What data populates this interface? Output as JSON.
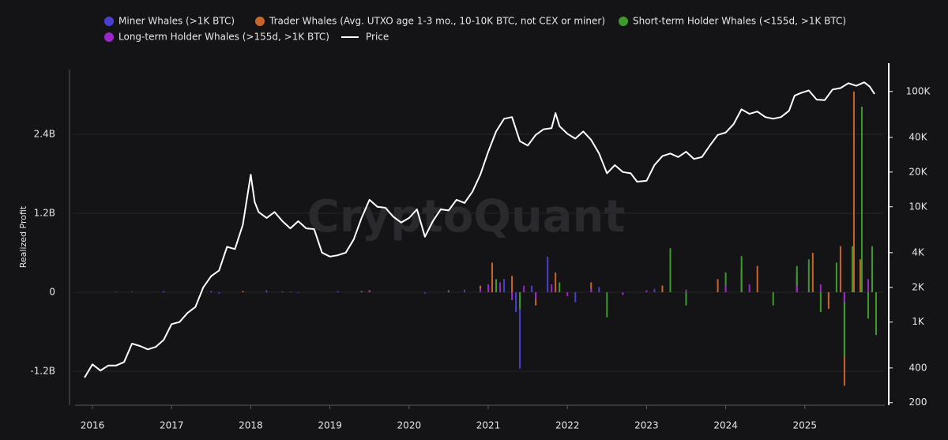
{
  "chart_data": {
    "type": "combo",
    "watermark": "CryptoQuant",
    "y_label": "Realized Profit",
    "xlim": [
      2015.83,
      2025.99
    ],
    "xticks": [
      2016,
      2017,
      2018,
      2019,
      2020,
      2021,
      2022,
      2023,
      2024,
      2025
    ],
    "ylim": [
      -1.716,
      3.384
    ],
    "yticks": [
      {
        "value": -1.2,
        "label": "-1.2B"
      },
      0,
      {
        "value": 1.2,
        "label": "1.2B"
      },
      {
        "value": 2.4,
        "label": "2.4B"
      }
    ],
    "y2lim": [
      190,
      155000
    ],
    "y2_log": true,
    "y2ticks": [
      200,
      400,
      {
        "value": 1000,
        "label": "1K"
      },
      {
        "value": 2000,
        "label": "2K"
      },
      {
        "value": 4000,
        "label": "4K"
      },
      {
        "value": 10000,
        "label": "10K"
      },
      {
        "value": 20000,
        "label": "20K"
      },
      {
        "value": 40000,
        "label": "40K"
      },
      {
        "value": 100000,
        "label": "100K"
      }
    ],
    "grid": true,
    "series": [
      {
        "name": "Miner Whales (>1K BTC)",
        "type": "bar",
        "color": "#4a3fd0",
        "x": [
          2016.3,
          2016.9,
          2017.6,
          2018.2,
          2018.6,
          2019.1,
          2019.5,
          2020.2,
          2020.7,
          2021.05,
          2021.2,
          2021.35,
          2021.4,
          2021.55,
          2021.75,
          2022.1,
          2022.4,
          2023.1,
          2024.2,
          2025.3
        ],
        "values": [
          0.01,
          0.02,
          -0.02,
          0.03,
          -0.01,
          0.02,
          0.03,
          -0.02,
          0.04,
          0.12,
          0.2,
          -0.3,
          -1.16,
          0.1,
          0.54,
          -0.15,
          0.08,
          0.05,
          0.1,
          -0.08
        ]
      },
      {
        "name": "Trader Whales (Avg. UTXO age 1-3 mo., 10-10K BTC, not CEX or miner)",
        "type": "bar",
        "color": "#c8652a",
        "x": [
          2017.9,
          2018.4,
          2019.5,
          2020.9,
          2021.05,
          2021.3,
          2021.6,
          2021.85,
          2022.3,
          2023.2,
          2023.9,
          2024.2,
          2024.4,
          2024.9,
          2025.1,
          2025.3,
          2025.45,
          2025.5,
          2025.62,
          2025.7,
          2025.85
        ],
        "values": [
          0.02,
          0.01,
          0.03,
          0.1,
          0.45,
          0.25,
          -0.2,
          0.3,
          0.15,
          0.1,
          0.2,
          0.35,
          0.4,
          0.3,
          0.6,
          -0.25,
          0.7,
          -1.42,
          3.05,
          0.5,
          0.3
        ]
      },
      {
        "name": "Short-term Holder Whales (<155d, >1K BTC)",
        "type": "bar",
        "color": "#3f9a2e",
        "x": [
          2019.4,
          2020.5,
          2021.1,
          2021.4,
          2021.9,
          2022.5,
          2023.3,
          2023.5,
          2024.0,
          2024.2,
          2024.6,
          2024.9,
          2025.05,
          2025.2,
          2025.4,
          2025.5,
          2025.6,
          2025.72,
          2025.8,
          2025.85,
          2025.9
        ],
        "values": [
          0.02,
          0.03,
          0.2,
          -0.25,
          0.15,
          -0.38,
          0.67,
          -0.2,
          0.3,
          0.55,
          -0.2,
          0.4,
          0.5,
          -0.3,
          0.45,
          -0.97,
          0.7,
          2.82,
          -0.4,
          0.7,
          -0.65
        ]
      },
      {
        "name": "Long-term Holder Whales (>155d, >1K BTC)",
        "type": "bar",
        "color": "#9b27c9",
        "x": [
          2016.5,
          2017.5,
          2018.5,
          2019.5,
          2020.5,
          2020.9,
          2021.0,
          2021.15,
          2021.3,
          2021.45,
          2021.6,
          2021.8,
          2022.0,
          2022.3,
          2022.7,
          2023.0,
          2023.5,
          2024.0,
          2024.3,
          2024.9,
          2025.2,
          2025.5,
          2025.8
        ],
        "values": [
          0.01,
          0.02,
          0.01,
          0.02,
          0.02,
          0.05,
          0.12,
          0.15,
          -0.12,
          0.1,
          -0.1,
          0.12,
          -0.06,
          0.05,
          -0.04,
          0.03,
          0.04,
          0.1,
          0.12,
          0.1,
          0.12,
          -0.15,
          0.2
        ]
      },
      {
        "name": "Price",
        "type": "line",
        "axis": "y2",
        "color": "#ffffff",
        "x": [
          2015.9,
          2016.0,
          2016.1,
          2016.2,
          2016.3,
          2016.4,
          2016.5,
          2016.6,
          2016.7,
          2016.8,
          2016.9,
          2017.0,
          2017.1,
          2017.2,
          2017.3,
          2017.4,
          2017.5,
          2017.6,
          2017.7,
          2017.8,
          2017.9,
          2018.0,
          2018.05,
          2018.1,
          2018.2,
          2018.3,
          2018.4,
          2018.5,
          2018.6,
          2018.7,
          2018.8,
          2018.9,
          2019.0,
          2019.1,
          2019.2,
          2019.3,
          2019.4,
          2019.5,
          2019.6,
          2019.7,
          2019.8,
          2019.9,
          2020.0,
          2020.1,
          2020.2,
          2020.3,
          2020.4,
          2020.5,
          2020.6,
          2020.7,
          2020.8,
          2020.9,
          2021.0,
          2021.1,
          2021.2,
          2021.3,
          2021.4,
          2021.5,
          2021.6,
          2021.7,
          2021.8,
          2021.85,
          2021.9,
          2022.0,
          2022.1,
          2022.2,
          2022.3,
          2022.4,
          2022.5,
          2022.6,
          2022.7,
          2022.8,
          2022.88,
          2023.0,
          2023.1,
          2023.2,
          2023.3,
          2023.4,
          2023.5,
          2023.6,
          2023.7,
          2023.8,
          2023.9,
          2024.0,
          2024.1,
          2024.2,
          2024.3,
          2024.4,
          2024.5,
          2024.6,
          2024.7,
          2024.8,
          2024.87,
          2024.95,
          2025.05,
          2025.15,
          2025.25,
          2025.35,
          2025.45,
          2025.55,
          2025.65,
          2025.75,
          2025.82,
          2025.88
        ],
        "values": [
          330,
          430,
          380,
          420,
          420,
          450,
          650,
          620,
          580,
          610,
          700,
          960,
          1000,
          1200,
          1350,
          2000,
          2500,
          2800,
          4500,
          4300,
          7000,
          19000,
          11000,
          9000,
          8000,
          9000,
          7500,
          6500,
          7500,
          6500,
          6400,
          4000,
          3700,
          3800,
          4000,
          5200,
          8000,
          11500,
          10000,
          9800,
          8200,
          7300,
          8000,
          9500,
          5500,
          7500,
          9500,
          9300,
          11500,
          10800,
          13500,
          19000,
          30000,
          45000,
          58000,
          60000,
          37000,
          34000,
          42000,
          47000,
          48000,
          65000,
          50000,
          43000,
          39000,
          45000,
          38000,
          29000,
          19500,
          23000,
          20000,
          19500,
          16500,
          16800,
          23000,
          27500,
          29000,
          27000,
          30000,
          26000,
          27000,
          34000,
          42000,
          44000,
          52000,
          70000,
          64000,
          67000,
          60000,
          58000,
          60000,
          68000,
          92000,
          97000,
          102000,
          85000,
          84000,
          104000,
          107000,
          118000,
          112000,
          120000,
          110000,
          95000
        ]
      }
    ]
  }
}
